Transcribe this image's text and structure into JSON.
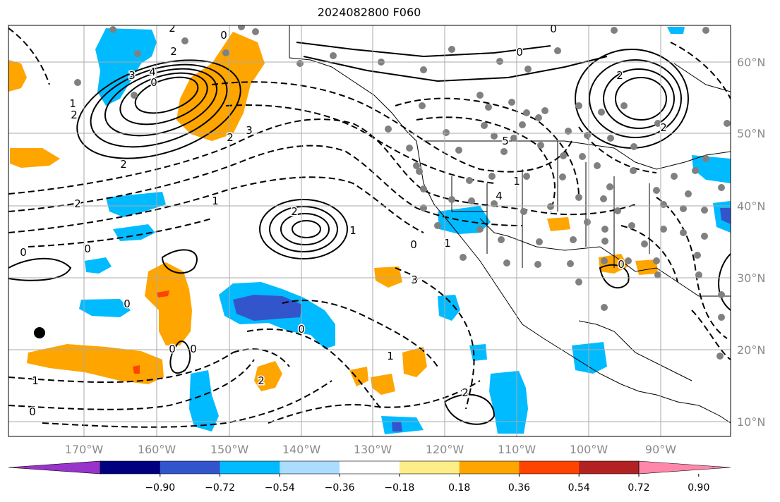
{
  "title": "2024082800 F060",
  "axes": {
    "lon_ticks": [
      "170°W",
      "160°W",
      "150°W",
      "140°W",
      "130°W",
      "120°W",
      "110°W",
      "100°W",
      "90°W"
    ],
    "lat_ticks": [
      "60°N",
      "50°N",
      "40°N",
      "30°N",
      "20°N",
      "10°N"
    ],
    "lon_range": [
      -178,
      -82
    ],
    "lat_range": [
      8,
      66
    ],
    "grid": true
  },
  "colorbar": {
    "labels": [
      "−0.90",
      "−0.72",
      "−0.54",
      "−0.36",
      "−0.18",
      "0.18",
      "0.36",
      "0.54",
      "0.72",
      "0.90"
    ],
    "colors": [
      "#9933cc",
      "#000080",
      "#3355cc",
      "#00bbff",
      "#aaddff",
      "#ffffff",
      "#ffee88",
      "#ffa500",
      "#ff4400",
      "#b22222",
      "#ff88aa"
    ],
    "extend": "both"
  },
  "contour_labels": [
    "0",
    "2",
    "2",
    "0",
    "3",
    "4",
    "1",
    "2",
    "2",
    "3",
    "2",
    "2",
    "1",
    "0",
    "0",
    "2",
    "1",
    "0",
    "0",
    "0",
    "0",
    "0",
    "1",
    "1",
    "0",
    "2",
    "2",
    "1",
    "0",
    "3",
    "4",
    "5",
    "2",
    "2",
    "0",
    "0",
    "1",
    "0"
  ],
  "colors": {
    "positive": "#ffa500",
    "negative": "#00bbff",
    "strong_negative": "#3355cc",
    "station": "#808080"
  }
}
